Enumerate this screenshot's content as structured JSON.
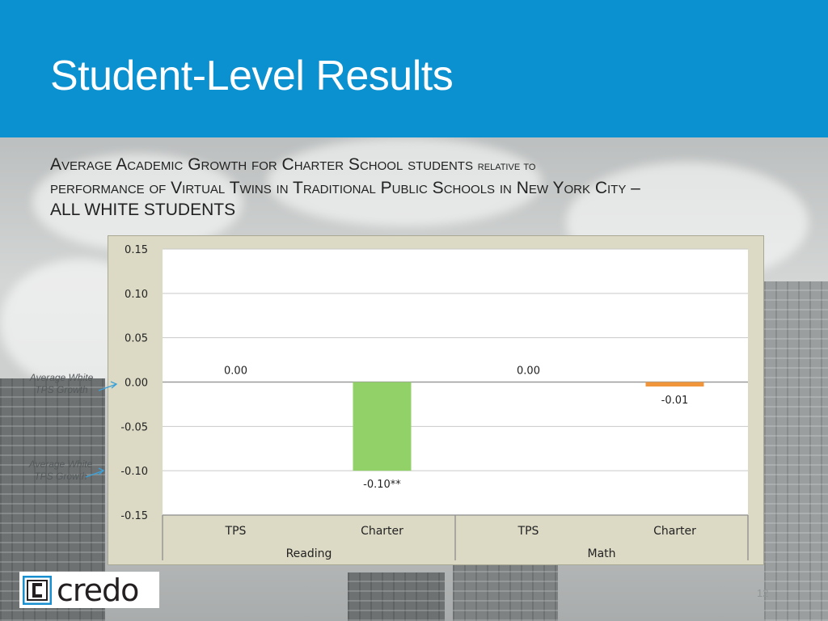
{
  "slide": {
    "title": "Student-Level Results",
    "subtitle_line1_a": "Average Academic Growth for Charter School students",
    "subtitle_line1_b": "relative to",
    "subtitle_line2": "performance of Virtual Twins in Traditional Public Schools in New York City –",
    "subtitle_line3": "ALL WHITE STUDENTS",
    "annotation_upper": "Average White TPS Growth",
    "annotation_lower": "Average White TPS Growth",
    "logo_text": "credo",
    "page_number": "12"
  },
  "colors": {
    "header": "#0b90d0",
    "reading_charter": "#92d068",
    "math_charter": "#f0953a",
    "chart_frame": "#dcdac5",
    "annotation_arrow": "#3aa0d8"
  },
  "chart_data": {
    "type": "bar",
    "title": "",
    "xlabel": "",
    "ylabel": "",
    "ylim": [
      -0.15,
      0.15
    ],
    "yticks": [
      "0.15",
      "0.10",
      "0.05",
      "0.00",
      "-0.05",
      "-0.10",
      "-0.15"
    ],
    "ytick_values": [
      0.15,
      0.1,
      0.05,
      0.0,
      -0.05,
      -0.1,
      -0.15
    ],
    "grid": true,
    "groups": [
      "Reading",
      "Math"
    ],
    "categories": [
      "TPS",
      "Charter",
      "TPS",
      "Charter"
    ],
    "values": [
      0.0,
      -0.1,
      0.0,
      -0.005
    ],
    "data_labels": [
      "0.00",
      "-0.10**",
      "0.00",
      "-0.01"
    ]
  }
}
